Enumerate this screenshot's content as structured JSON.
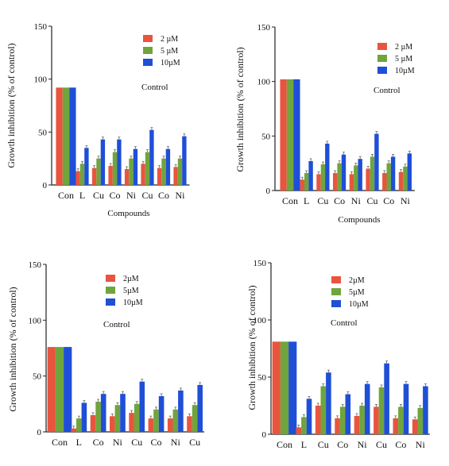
{
  "colors": {
    "s2": "#e8553f",
    "s5": "#6fa53c",
    "s10": "#1f4fd6",
    "axis": "#222222"
  },
  "panels": [
    {
      "ylabel": "Growth inhibition (% of control)",
      "xlabel": "Compounds",
      "control_label": "Control",
      "ticks": [
        "0",
        "50",
        "100",
        "150"
      ]
    },
    {
      "ylabel": "Growth inhibition (% of control)",
      "xlabel": "Compounds",
      "control_label": "Control",
      "ticks": [
        "0",
        "50",
        "100",
        "150"
      ]
    },
    {
      "ylabel": "Growth inhibition (% of control)",
      "xlabel": "",
      "control_label": "Control",
      "ticks": [
        "0",
        "50",
        "100",
        "150"
      ]
    },
    {
      "ylabel": "Growth inhibition (% of control)",
      "xlabel": "",
      "control_label": "Control",
      "ticks": [
        "0",
        "50",
        "100",
        "150"
      ]
    }
  ],
  "chart_data": [
    {
      "type": "bar",
      "categories": [
        "Con",
        "L",
        "Cu",
        "Co",
        "Ni",
        "Cu",
        "Co",
        "Ni"
      ],
      "series": [
        {
          "name": "2 µM",
          "values": [
            92,
            13,
            16,
            18,
            15,
            20,
            16,
            17
          ]
        },
        {
          "name": "5 µM",
          "values": [
            92,
            20,
            25,
            31,
            25,
            31,
            25,
            25
          ]
        },
        {
          "name": "10µM",
          "values": [
            92,
            35,
            43,
            43,
            34,
            52,
            34,
            46
          ]
        }
      ],
      "ylim": [
        0,
        150
      ],
      "legend": "top-right",
      "xlabel": "Compounds",
      "ylabel": "Growth inhibition (% of control)"
    },
    {
      "type": "bar",
      "categories": [
        "Con",
        "L",
        "Cu",
        "Co",
        "Ni",
        "Cu",
        "Co",
        "Ni"
      ],
      "series": [
        {
          "name": "2 µM",
          "values": [
            102,
            10,
            15,
            16,
            15,
            20,
            16,
            17
          ]
        },
        {
          "name": "5 µM",
          "values": [
            102,
            16,
            24,
            25,
            23,
            31,
            25,
            22
          ]
        },
        {
          "name": "10µM",
          "values": [
            102,
            27,
            43,
            33,
            29,
            52,
            31,
            34
          ]
        }
      ],
      "ylim": [
        0,
        150
      ],
      "legend": "top-right",
      "xlabel": "Compounds",
      "ylabel": "Growth inhibition (% of control)"
    },
    {
      "type": "bar",
      "categories": [
        "Con",
        "L",
        "Co",
        "Ni",
        "Cu",
        "Co",
        "Ni",
        "Cu"
      ],
      "series": [
        {
          "name": "2µM",
          "values": [
            76,
            3,
            15,
            14,
            17,
            12,
            12,
            14
          ]
        },
        {
          "name": "5µM",
          "values": [
            76,
            12,
            27,
            24,
            25,
            20,
            20,
            24
          ]
        },
        {
          "name": "10µM",
          "values": [
            76,
            26,
            34,
            34,
            45,
            32,
            37,
            42
          ]
        }
      ],
      "ylim": [
        0,
        150
      ],
      "legend": "top-right",
      "ylabel": "Growth inhibition (% of control)"
    },
    {
      "type": "bar",
      "categories": [
        "Con",
        "L",
        "Cu",
        "Co",
        "Ni",
        "Cu",
        "Co",
        "Ni"
      ],
      "series": [
        {
          "name": "2µM",
          "values": [
            81,
            6,
            25,
            14,
            16,
            24,
            14,
            13
          ]
        },
        {
          "name": "5µM",
          "values": [
            81,
            15,
            42,
            24,
            25,
            41,
            24,
            23
          ]
        },
        {
          "name": "10µM",
          "values": [
            81,
            31,
            54,
            35,
            44,
            62,
            44,
            42
          ]
        }
      ],
      "ylim": [
        0,
        150
      ],
      "legend": "top-right",
      "ylabel": "Growth inhibition (% of control)"
    }
  ]
}
